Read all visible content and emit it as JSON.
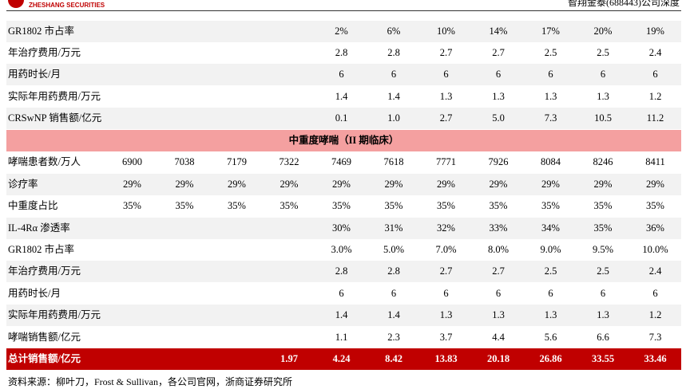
{
  "header": {
    "logo_text": "ZHESHANG SECURITIES",
    "report_title": "智翔金泰(688443)公司深度"
  },
  "table": {
    "rows": [
      {
        "label": "GR1802 市占率",
        "cells": [
          null,
          null,
          null,
          null,
          "2%",
          "6%",
          "10%",
          "14%",
          "17%",
          "20%",
          "19%"
        ]
      },
      {
        "label": "年治疗费用/万元",
        "cells": [
          null,
          null,
          null,
          null,
          "2.8",
          "2.8",
          "2.7",
          "2.7",
          "2.5",
          "2.5",
          "2.4"
        ]
      },
      {
        "label": "用药时长/月",
        "cells": [
          null,
          null,
          null,
          null,
          "6",
          "6",
          "6",
          "6",
          "6",
          "6",
          "6"
        ]
      },
      {
        "label": "实际年用药费用/万元",
        "cells": [
          null,
          null,
          null,
          null,
          "1.4",
          "1.4",
          "1.3",
          "1.3",
          "1.3",
          "1.3",
          "1.2"
        ]
      },
      {
        "label": "CRSwNP 销售额/亿元",
        "cells": [
          null,
          null,
          null,
          null,
          "0.1",
          "1.0",
          "2.7",
          "5.0",
          "7.3",
          "10.5",
          "11.2"
        ]
      },
      {
        "section": "中重度哮喘（II 期临床）"
      },
      {
        "label": "哮喘患者数/万人",
        "cells": [
          "6900",
          "7038",
          "7179",
          "7322",
          "7469",
          "7618",
          "7771",
          "7926",
          "8084",
          "8246",
          "8411"
        ]
      },
      {
        "label": "诊疗率",
        "cells": [
          "29%",
          "29%",
          "29%",
          "29%",
          "29%",
          "29%",
          "29%",
          "29%",
          "29%",
          "29%",
          "29%"
        ]
      },
      {
        "label": "中重度占比",
        "cells": [
          "35%",
          "35%",
          "35%",
          "35%",
          "35%",
          "35%",
          "35%",
          "35%",
          "35%",
          "35%",
          "35%"
        ]
      },
      {
        "label": "IL-4Rα 渗透率",
        "cells": [
          null,
          null,
          null,
          null,
          "30%",
          "31%",
          "32%",
          "33%",
          "34%",
          "35%",
          "36%"
        ]
      },
      {
        "label": "GR1802 市占率",
        "cells": [
          null,
          null,
          null,
          null,
          "3.0%",
          "5.0%",
          "7.0%",
          "8.0%",
          "9.0%",
          "9.5%",
          "10.0%"
        ]
      },
      {
        "label": "年治疗费用/万元",
        "cells": [
          null,
          null,
          null,
          null,
          "2.8",
          "2.8",
          "2.7",
          "2.7",
          "2.5",
          "2.5",
          "2.4"
        ]
      },
      {
        "label": "用药时长/月",
        "cells": [
          null,
          null,
          null,
          null,
          "6",
          "6",
          "6",
          "6",
          "6",
          "6",
          "6"
        ]
      },
      {
        "label": "实际年用药费用/万元",
        "cells": [
          null,
          null,
          null,
          null,
          "1.4",
          "1.4",
          "1.3",
          "1.3",
          "1.3",
          "1.3",
          "1.2"
        ]
      },
      {
        "label": "哮喘销售额/亿元",
        "cells": [
          null,
          null,
          null,
          null,
          "1.1",
          "2.3",
          "3.7",
          "4.4",
          "5.6",
          "6.6",
          "7.3"
        ]
      },
      {
        "label": "总计销售额/亿元",
        "total": true,
        "cells": [
          null,
          null,
          null,
          "1.97",
          "4.24",
          "8.42",
          "13.83",
          "20.18",
          "26.86",
          "33.55",
          "33.46"
        ]
      }
    ]
  },
  "footer": {
    "source": "资料来源：柳叶刀，Frost & Sullivan，各公司官网，浙商证券研究所"
  }
}
